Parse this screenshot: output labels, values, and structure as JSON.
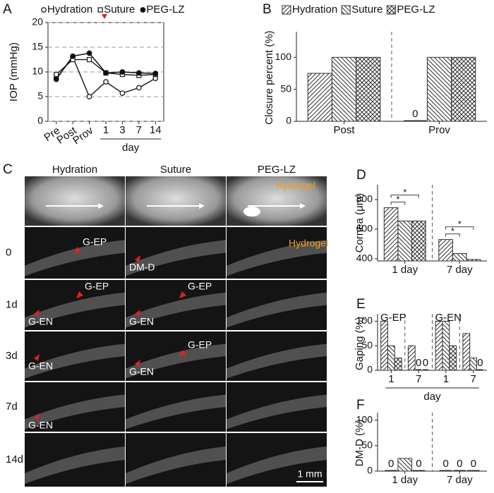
{
  "panel_labels": [
    "A",
    "B",
    "C",
    "D",
    "E",
    "F"
  ],
  "chart_data": [
    {
      "type": "line",
      "ylabel": "IOP (mmHg)",
      "categories": [
        "Pre",
        "Post",
        "Prov",
        "1",
        "3",
        "7",
        "14"
      ],
      "x_group_label": "day",
      "x_group_span": [
        3,
        6
      ],
      "ylim": [
        0,
        20
      ],
      "yticks": [
        0,
        5,
        10,
        15,
        20
      ],
      "grid": "dashed",
      "series": [
        {
          "name": "Hydration",
          "marker": "circle-open",
          "color": "#222",
          "values": [
            8.7,
            13,
            5,
            8,
            5.7,
            6.8,
            8.7
          ]
        },
        {
          "name": "Suture",
          "marker": "square-open",
          "color": "#222",
          "values": [
            9.5,
            12.5,
            12.5,
            9.8,
            9.5,
            9.3,
            9.5
          ]
        },
        {
          "name": "PEG-LZ",
          "marker": "circle-filled",
          "color": "#111",
          "values": [
            8.5,
            13.2,
            13.8,
            9.8,
            10,
            9.8,
            9.7
          ]
        }
      ]
    },
    {
      "type": "bar",
      "ylabel": "Closure percent (%)",
      "categories": [
        "Post",
        "Prov"
      ],
      "separator": true,
      "zero_labels": true,
      "ylim": [
        0,
        140
      ],
      "yticks": [
        0,
        50,
        100
      ],
      "series": [
        {
          "name": "Hydration",
          "hatch": "forward",
          "values": [
            75,
            0
          ]
        },
        {
          "name": "Suture",
          "hatch": "back",
          "values": [
            100,
            100
          ]
        },
        {
          "name": "PEG-LZ",
          "hatch": "cross",
          "values": [
            100,
            100
          ]
        }
      ]
    },
    {
      "type": "bar",
      "ylabel": "Cornea (μm)",
      "categories": [
        "1 day",
        "7 day"
      ],
      "separator": true,
      "ylim": [
        385,
        900
      ],
      "yticks": [
        400,
        600,
        800
      ],
      "significance": [
        {
          "category": 0,
          "pair": [
            0,
            1
          ],
          "label": "*"
        },
        {
          "category": 0,
          "pair": [
            0,
            2
          ],
          "label": "*"
        },
        {
          "category": 1,
          "pair": [
            0,
            1
          ],
          "label": "*"
        },
        {
          "category": 1,
          "pair": [
            0,
            2
          ],
          "label": "*"
        }
      ],
      "series": [
        {
          "name": "Hydration",
          "hatch": "forward",
          "values": [
            745,
            530
          ]
        },
        {
          "name": "Suture",
          "hatch": "back",
          "values": [
            655,
            435
          ]
        },
        {
          "name": "PEG-LZ",
          "hatch": "cross",
          "values": [
            655,
            395
          ]
        }
      ]
    },
    {
      "type": "bar",
      "ylabel": "Gaping (%)",
      "categories": [
        "1",
        "7",
        "1",
        "7"
      ],
      "groups": [
        "G-EP",
        "G-EN"
      ],
      "separator": true,
      "zero_labels": true,
      "x_group_label": "day",
      "x_group_span": [
        0,
        3
      ],
      "ylim": [
        0,
        115
      ],
      "yticks": [
        0,
        50,
        100
      ],
      "series": [
        {
          "name": "Hydration",
          "hatch": "forward",
          "values": [
            100,
            50,
            100,
            75
          ]
        },
        {
          "name": "Suture",
          "hatch": "back",
          "values": [
            50,
            0,
            100,
            25
          ]
        },
        {
          "name": "PEG-LZ",
          "hatch": "cross",
          "values": [
            25,
            0,
            50,
            0
          ]
        }
      ]
    },
    {
      "type": "bar",
      "ylabel": "DM-D (%)",
      "categories": [
        "1 day",
        "7 day"
      ],
      "separator": true,
      "zero_labels": true,
      "ylim": [
        0,
        115
      ],
      "yticks": [
        0,
        50,
        100
      ],
      "series": [
        {
          "name": "Hydration",
          "hatch": "forward",
          "values": [
            0,
            0
          ]
        },
        {
          "name": "Suture",
          "hatch": "back",
          "values": [
            25,
            0
          ]
        },
        {
          "name": "PEG-LZ",
          "hatch": "cross",
          "values": [
            0,
            0
          ]
        }
      ]
    }
  ],
  "panel_c": {
    "columns": [
      "Hydration",
      "Suture",
      "PEG-LZ"
    ],
    "rows": [
      "0",
      "1d",
      "3d",
      "7d",
      "14d"
    ],
    "annotations": [
      {
        "row": -1,
        "col": 2,
        "text": "Hydrogel"
      },
      {
        "row": 0,
        "col": 0,
        "text": "G-EP"
      },
      {
        "row": 0,
        "col": 1,
        "text": "DM-D"
      },
      {
        "row": 0,
        "col": 2,
        "text": "Hydrogel"
      },
      {
        "row": 1,
        "col": 0,
        "text": "G-EP"
      },
      {
        "row": 1,
        "col": 0,
        "text": "G-EN"
      },
      {
        "row": 1,
        "col": 1,
        "text": "G-EP"
      },
      {
        "row": 1,
        "col": 1,
        "text": "G-EN"
      },
      {
        "row": 2,
        "col": 0,
        "text": "G-EN"
      },
      {
        "row": 2,
        "col": 1,
        "text": "G-EP"
      },
      {
        "row": 2,
        "col": 1,
        "text": "G-EN"
      },
      {
        "row": 3,
        "col": 0,
        "text": "G-EN"
      }
    ],
    "scale_bar": "1 mm"
  }
}
